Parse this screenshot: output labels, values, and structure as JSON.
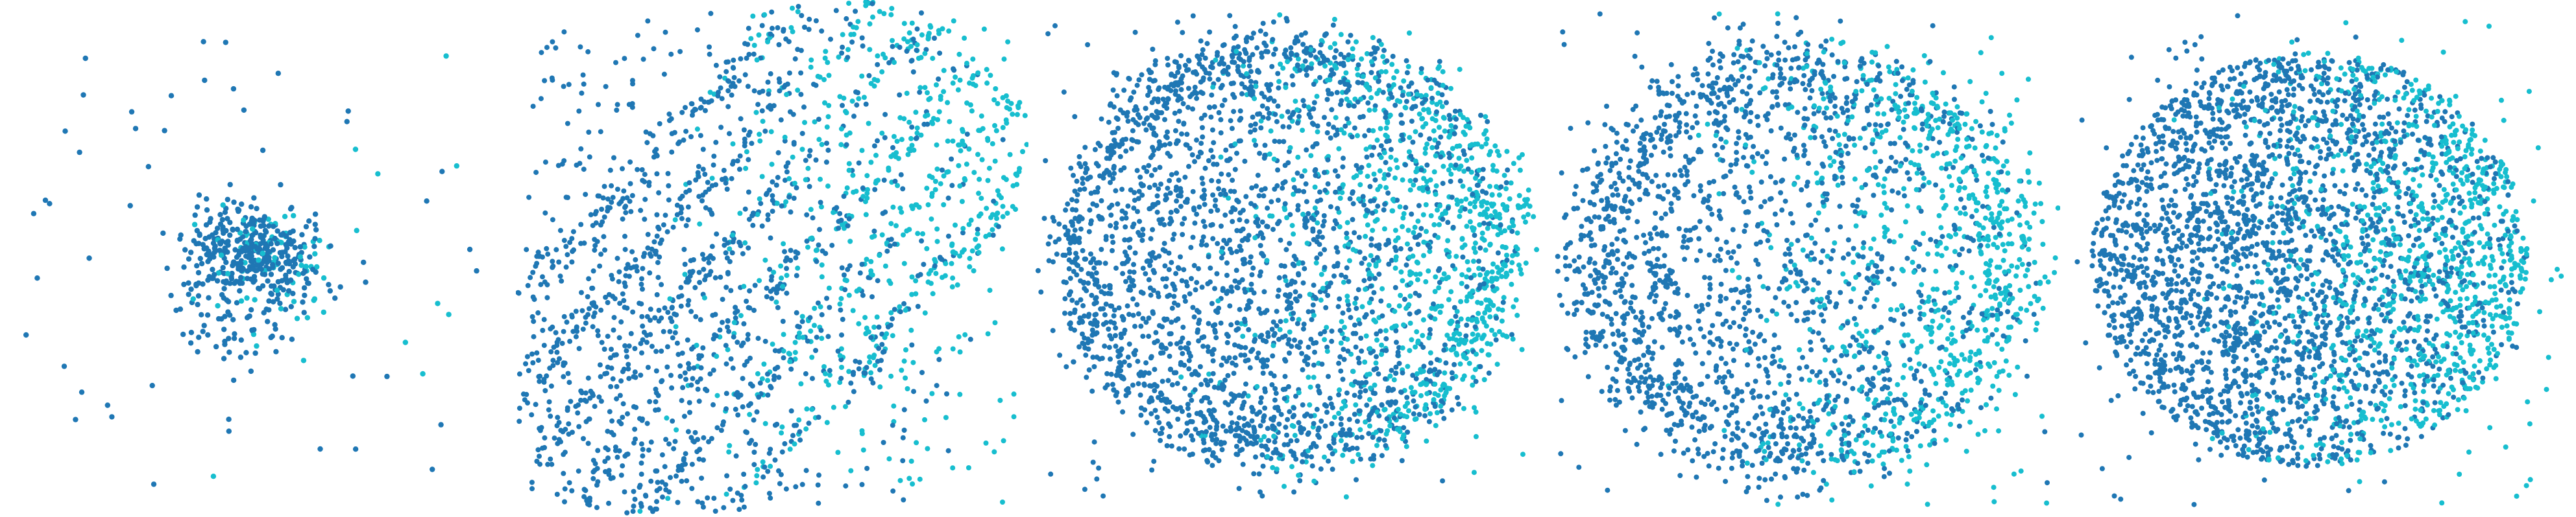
{
  "colors": {
    "dark": "#1f77b4",
    "light": "#17becf",
    "background": "#ffffff"
  },
  "chart_data": [
    {
      "type": "scatter",
      "panel": 1,
      "xlim": [
        -1,
        1
      ],
      "ylim": [
        -1,
        1
      ],
      "grid": false,
      "legend": "none",
      "point_count_estimate": 600
    },
    {
      "type": "scatter",
      "panel": 2,
      "xlim": [
        -1,
        1
      ],
      "ylim": [
        -1,
        1
      ],
      "grid": false,
      "legend": "none",
      "point_count_estimate": 2200
    },
    {
      "type": "scatter",
      "panel": 3,
      "xlim": [
        -1,
        1
      ],
      "ylim": [
        -1,
        1
      ],
      "grid": false,
      "legend": "none",
      "point_count_estimate": 3400
    },
    {
      "type": "scatter",
      "panel": 4,
      "xlim": [
        -1,
        1
      ],
      "ylim": [
        -1,
        1
      ],
      "grid": false,
      "legend": "none",
      "point_count_estimate": 2700
    },
    {
      "type": "scatter",
      "panel": 5,
      "xlim": [
        -1,
        1
      ],
      "ylim": [
        -1,
        1
      ],
      "grid": false,
      "legend": "none",
      "point_count_estimate": 3600
    }
  ]
}
